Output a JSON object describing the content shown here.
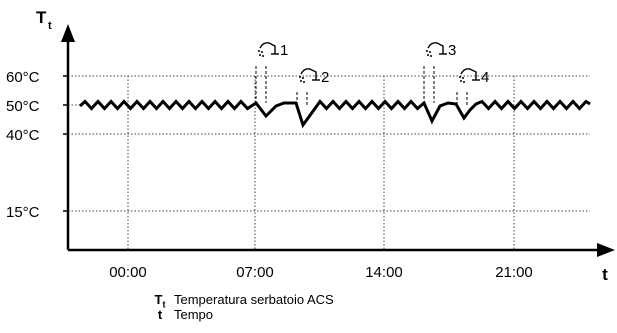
{
  "diagram": {
    "y_axis": {
      "symbol": "T",
      "subscript": "t"
    },
    "x_axis": {
      "symbol": "t"
    },
    "y_ticks": [
      {
        "label": "60°C",
        "value": 60
      },
      {
        "label": "50°C",
        "value": 50
      },
      {
        "label": "40°C",
        "value": 40
      },
      {
        "label": "15°C",
        "value": 15
      }
    ],
    "x_ticks": [
      "00:00",
      "07:00",
      "14:00",
      "21:00"
    ],
    "events": [
      {
        "number": "1"
      },
      {
        "number": "2"
      },
      {
        "number": "3"
      },
      {
        "number": "4"
      }
    ]
  },
  "legend": [
    {
      "symbol": "T",
      "subscript": "t",
      "text": "Temperatura serbatoio ACS"
    },
    {
      "symbol": "t",
      "subscript": "",
      "text": "Tempo"
    }
  ]
}
